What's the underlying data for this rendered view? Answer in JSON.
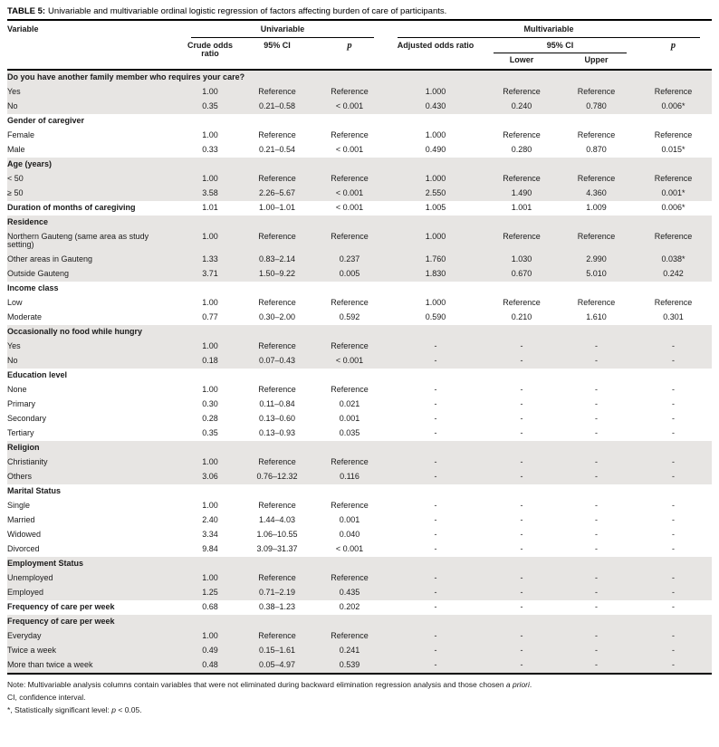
{
  "title": {
    "prefix": "TABLE 5:",
    "text": "Univariable and multivariable ordinal logistic regression of factors affecting burden of care of participants."
  },
  "colors": {
    "row_shade": "#e7e5e3",
    "rule": "#000000"
  },
  "header": {
    "variable": "Variable",
    "univariable": "Univariable",
    "multivariable": "Multivariable",
    "crude_odds_ratio": "Crude odds ratio",
    "ci_univariable": "95% CI",
    "p_univariable": "p",
    "adjusted_odds_ratio": "Adjusted odds ratio",
    "ci_multivariable": "95% CI",
    "lower": "Lower",
    "upper": "Upper",
    "p_multivariable": "p"
  },
  "sections": [
    {
      "header": "Do you have another family member who requires your care?",
      "shaded": true,
      "rows": [
        {
          "label": "Yes",
          "values": [
            "1.00",
            "Reference",
            "Reference",
            "1.000",
            "Reference",
            "Reference",
            "Reference"
          ]
        },
        {
          "label": "No",
          "values": [
            "0.35",
            "0.21–0.58",
            "< 0.001",
            "0.430",
            "0.240",
            "0.780",
            "0.006*"
          ]
        }
      ]
    },
    {
      "header": "Gender of caregiver",
      "shaded": false,
      "rows": [
        {
          "label": "Female",
          "values": [
            "1.00",
            "Reference",
            "Reference",
            "1.000",
            "Reference",
            "Reference",
            "Reference"
          ]
        },
        {
          "label": "Male",
          "values": [
            "0.33",
            "0.21–0.54",
            "< 0.001",
            "0.490",
            "0.280",
            "0.870",
            "0.015*"
          ]
        }
      ]
    },
    {
      "header": "Age (years)",
      "shaded": true,
      "rows": [
        {
          "label": "< 50",
          "values": [
            "1.00",
            "Reference",
            "Reference",
            "1.000",
            "Reference",
            "Reference",
            "Reference"
          ]
        },
        {
          "label": "≥ 50",
          "values": [
            "3.58",
            "2.26–5.67",
            "< 0.001",
            "2.550",
            "1.490",
            "4.360",
            "0.001*"
          ]
        }
      ]
    },
    {
      "header": null,
      "shaded": false,
      "rows": [
        {
          "label": "Duration of months of caregiving",
          "bold": true,
          "values": [
            "1.01",
            "1.00–1.01",
            "< 0.001",
            "1.005",
            "1.001",
            "1.009",
            "0.006*"
          ]
        }
      ]
    },
    {
      "header": "Residence",
      "shaded": true,
      "rows": [
        {
          "label": "Northern Gauteng (same area as study setting)",
          "values": [
            "1.00",
            "Reference",
            "Reference",
            "1.000",
            "Reference",
            "Reference",
            "Reference"
          ]
        },
        {
          "label": "Other areas in Gauteng",
          "values": [
            "1.33",
            "0.83–2.14",
            "0.237",
            "1.760",
            "1.030",
            "2.990",
            "0.038*"
          ]
        },
        {
          "label": "Outside Gauteng",
          "values": [
            "3.71",
            "1.50–9.22",
            "0.005",
            "1.830",
            "0.670",
            "5.010",
            "0.242"
          ]
        }
      ]
    },
    {
      "header": "Income class",
      "shaded": false,
      "rows": [
        {
          "label": "Low",
          "values": [
            "1.00",
            "Reference",
            "Reference",
            "1.000",
            "Reference",
            "Reference",
            "Reference"
          ]
        },
        {
          "label": "Moderate",
          "values": [
            "0.77",
            "0.30–2.00",
            "0.592",
            "0.590",
            "0.210",
            "1.610",
            "0.301"
          ]
        }
      ]
    },
    {
      "header": "Occasionally no food while hungry",
      "shaded": true,
      "rows": [
        {
          "label": "Yes",
          "values": [
            "1.00",
            "Reference",
            "Reference",
            "-",
            "-",
            "-",
            "-"
          ]
        },
        {
          "label": "No",
          "values": [
            "0.18",
            "0.07–0.43",
            "< 0.001",
            "-",
            "-",
            "-",
            "-"
          ]
        }
      ]
    },
    {
      "header": "Education level",
      "shaded": false,
      "rows": [
        {
          "label": "None",
          "values": [
            "1.00",
            "Reference",
            "Reference",
            "-",
            "-",
            "-",
            "-"
          ]
        },
        {
          "label": "Primary",
          "values": [
            "0.30",
            "0.11–0.84",
            "0.021",
            "-",
            "-",
            "-",
            "-"
          ]
        },
        {
          "label": "Secondary",
          "values": [
            "0.28",
            "0.13–0.60",
            "0.001",
            "-",
            "-",
            "-",
            "-"
          ]
        },
        {
          "label": "Tertiary",
          "values": [
            "0.35",
            "0.13–0.93",
            "0.035",
            "-",
            "-",
            "-",
            "-"
          ]
        }
      ]
    },
    {
      "header": "Religion",
      "shaded": true,
      "rows": [
        {
          "label": "Christianity",
          "values": [
            "1.00",
            "Reference",
            "Reference",
            "-",
            "-",
            "-",
            "-"
          ]
        },
        {
          "label": "Others",
          "values": [
            "3.06",
            "0.76–12.32",
            "0.116",
            "-",
            "-",
            "-",
            "-"
          ]
        }
      ]
    },
    {
      "header": "Marital Status",
      "shaded": false,
      "rows": [
        {
          "label": "Single",
          "values": [
            "1.00",
            "Reference",
            "Reference",
            "-",
            "-",
            "-",
            "-"
          ]
        },
        {
          "label": "Married",
          "values": [
            "2.40",
            "1.44–4.03",
            "0.001",
            "-",
            "-",
            "-",
            "-"
          ]
        },
        {
          "label": "Widowed",
          "values": [
            "3.34",
            "1.06–10.55",
            "0.040",
            "-",
            "-",
            "-",
            "-"
          ]
        },
        {
          "label": "Divorced",
          "values": [
            "9.84",
            "3.09–31.37",
            "< 0.001",
            "-",
            "-",
            "-",
            "-"
          ]
        }
      ]
    },
    {
      "header": "Employment Status",
      "shaded": true,
      "rows": [
        {
          "label": "Unemployed",
          "values": [
            "1.00",
            "Reference",
            "Reference",
            "-",
            "-",
            "-",
            "-"
          ]
        },
        {
          "label": "Employed",
          "values": [
            "1.25",
            "0.71–2.19",
            "0.435",
            "-",
            "-",
            "-",
            "-"
          ]
        }
      ]
    },
    {
      "header": null,
      "shaded": false,
      "rows": [
        {
          "label": "Frequency of care per week",
          "bold": true,
          "values": [
            "0.68",
            "0.38–1.23",
            "0.202",
            "-",
            "-",
            "-",
            "-"
          ]
        }
      ]
    },
    {
      "header": "Frequency of care per week",
      "shaded": true,
      "rows": [
        {
          "label": "Everyday",
          "values": [
            "1.00",
            "Reference",
            "Reference",
            "-",
            "-",
            "-",
            "-"
          ]
        },
        {
          "label": "Twice a week",
          "values": [
            "0.49",
            "0.15–1.61",
            "0.241",
            "-",
            "-",
            "-",
            "-"
          ]
        },
        {
          "label": "More than twice a week",
          "values": [
            "0.48",
            "0.05–4.97",
            "0.539",
            "-",
            "-",
            "-",
            "-"
          ]
        }
      ]
    }
  ],
  "footnotes": [
    {
      "parts": [
        {
          "t": "Note: Multivariable analysis columns contain variables that were not eliminated during backward elimination regression analysis and those chosen "
        },
        {
          "t": "a priori",
          "i": true
        },
        {
          "t": "."
        }
      ]
    },
    {
      "parts": [
        {
          "t": "CI, confidence interval."
        }
      ]
    },
    {
      "parts": [
        {
          "t": "*, Statistically significant level: "
        },
        {
          "t": "p",
          "i": true
        },
        {
          "t": " < 0.05."
        }
      ]
    }
  ]
}
